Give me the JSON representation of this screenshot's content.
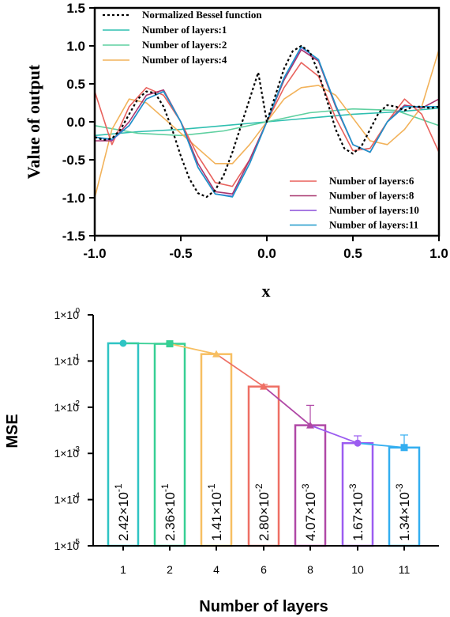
{
  "chart_data": [
    {
      "type": "line",
      "xlabel": "x",
      "ylabel": "Value of output",
      "xlim": [
        -1.0,
        1.0
      ],
      "ylim": [
        -1.5,
        1.5
      ],
      "x_ticks": [
        "-1.0",
        "-0.5",
        "0.0",
        "0.5",
        "1.0"
      ],
      "y_ticks": [
        "-1.5",
        "-1.0",
        "-0.5",
        "0.0",
        "0.5",
        "1.0",
        "1.5"
      ],
      "legend_top_left": [
        "Normalized Bessel function",
        "Number of layers:1",
        "Number of layers:2",
        "Number of layers:4"
      ],
      "legend_bottom_right": [
        "Number of layers:6",
        "Number of layers:8",
        "Number of layers:10",
        "Number of layers:11"
      ],
      "series": [
        {
          "name": "Normalized Bessel function",
          "color": "#000000",
          "dash": true,
          "x": [
            -1,
            -0.95,
            -0.9,
            -0.85,
            -0.8,
            -0.75,
            -0.7,
            -0.65,
            -0.6,
            -0.55,
            -0.5,
            -0.45,
            -0.4,
            -0.35,
            -0.3,
            -0.25,
            -0.2,
            -0.15,
            -0.1,
            -0.05,
            0,
            0.05,
            0.1,
            0.15,
            0.2,
            0.25,
            0.3,
            0.35,
            0.4,
            0.45,
            0.5,
            0.55,
            0.6,
            0.65,
            0.7,
            0.75,
            0.8,
            0.85,
            0.9,
            0.95,
            1
          ],
          "y": [
            -0.2,
            -0.24,
            -0.22,
            -0.1,
            0.1,
            0.3,
            0.4,
            0.38,
            0.2,
            -0.1,
            -0.45,
            -0.75,
            -0.94,
            -0.99,
            -0.9,
            -0.7,
            -0.4,
            -0.05,
            0.3,
            0.65,
            0.0,
            0.35,
            0.7,
            0.93,
            1.0,
            0.92,
            0.65,
            0.28,
            -0.1,
            -0.35,
            -0.42,
            -0.32,
            -0.1,
            0.12,
            0.22,
            0.2,
            0.15,
            0.2,
            0.2,
            0.18,
            0.2
          ]
        },
        {
          "name": "Number of layers:1",
          "color": "#2fbfb0",
          "x": [
            -1,
            -0.75,
            -0.5,
            -0.25,
            0,
            0.25,
            0.5,
            0.75,
            1
          ],
          "y": [
            -0.18,
            -0.13,
            -0.1,
            -0.05,
            0.0,
            0.05,
            0.1,
            0.13,
            0.18
          ]
        },
        {
          "name": "Number of layers:2",
          "color": "#5fd0a0",
          "x": [
            -1,
            -0.75,
            -0.5,
            -0.25,
            0,
            0.25,
            0.5,
            0.75,
            1
          ],
          "y": [
            -0.05,
            -0.15,
            -0.18,
            -0.12,
            0.0,
            0.12,
            0.17,
            0.15,
            -0.05
          ]
        },
        {
          "name": "Number of layers:4",
          "color": "#f2b25a",
          "x": [
            -1,
            -0.9,
            -0.8,
            -0.7,
            -0.6,
            -0.5,
            -0.4,
            -0.3,
            -0.2,
            -0.1,
            0,
            0.1,
            0.2,
            0.3,
            0.4,
            0.5,
            0.6,
            0.7,
            0.8,
            0.9,
            1
          ],
          "y": [
            -1.0,
            -0.1,
            0.3,
            0.25,
            0.05,
            -0.15,
            -0.35,
            -0.55,
            -0.55,
            -0.3,
            0.0,
            0.3,
            0.45,
            0.48,
            0.35,
            0.05,
            -0.25,
            -0.3,
            -0.1,
            0.2,
            0.95
          ]
        },
        {
          "name": "Number of layers:6",
          "color": "#e8615c",
          "x": [
            -1,
            -0.9,
            -0.8,
            -0.7,
            -0.6,
            -0.5,
            -0.4,
            -0.3,
            -0.2,
            -0.1,
            0,
            0.1,
            0.2,
            0.3,
            0.4,
            0.5,
            0.6,
            0.7,
            0.8,
            0.9,
            1
          ],
          "y": [
            0.4,
            -0.3,
            0.2,
            0.45,
            0.35,
            0.0,
            -0.45,
            -0.8,
            -0.85,
            -0.5,
            0.0,
            0.45,
            0.78,
            0.6,
            0.05,
            -0.38,
            -0.35,
            0.0,
            0.3,
            0.1,
            -0.4
          ]
        },
        {
          "name": "Number of layers:8",
          "color": "#a8356e",
          "x": [
            -1,
            -0.9,
            -0.8,
            -0.7,
            -0.6,
            -0.5,
            -0.4,
            -0.3,
            -0.2,
            -0.1,
            0,
            0.1,
            0.2,
            0.3,
            0.4,
            0.5,
            0.6,
            0.7,
            0.8,
            0.9,
            1
          ],
          "y": [
            -0.25,
            -0.25,
            0.0,
            0.35,
            0.42,
            0.0,
            -0.55,
            -0.92,
            -0.95,
            -0.5,
            0.0,
            0.55,
            0.95,
            0.8,
            0.2,
            -0.3,
            -0.4,
            0.0,
            0.22,
            0.18,
            0.3
          ]
        },
        {
          "name": "Number of layers:10",
          "color": "#8a4fd8",
          "x": [
            -1,
            -0.9,
            -0.8,
            -0.7,
            -0.6,
            -0.5,
            -0.4,
            -0.3,
            -0.2,
            -0.1,
            0,
            0.1,
            0.2,
            0.3,
            0.4,
            0.5,
            0.6,
            0.7,
            0.8,
            0.9,
            1
          ],
          "y": [
            -0.2,
            -0.24,
            -0.05,
            0.3,
            0.4,
            0.0,
            -0.6,
            -0.95,
            -0.98,
            -0.55,
            0.0,
            0.58,
            0.98,
            0.82,
            0.22,
            -0.3,
            -0.4,
            0.0,
            0.2,
            0.2,
            0.2
          ]
        },
        {
          "name": "Number of layers:11",
          "color": "#1b98c9",
          "x": [
            -1,
            -0.9,
            -0.8,
            -0.7,
            -0.6,
            -0.5,
            -0.4,
            -0.3,
            -0.2,
            -0.1,
            0,
            0.1,
            0.2,
            0.3,
            0.4,
            0.5,
            0.6,
            0.7,
            0.8,
            0.9,
            1
          ],
          "y": [
            -0.2,
            -0.23,
            -0.05,
            0.3,
            0.4,
            0.0,
            -0.6,
            -0.95,
            -0.99,
            -0.55,
            0.0,
            0.58,
            0.99,
            0.82,
            0.22,
            -0.3,
            -0.4,
            0.0,
            0.2,
            0.2,
            0.2
          ]
        }
      ]
    },
    {
      "type": "bar",
      "xlabel": "Number of layers",
      "ylabel": "MSE",
      "yscale": "log",
      "ylim": [
        1e-05,
        1
      ],
      "y_ticks": [
        {
          "base": "1×10",
          "exp": "0"
        },
        {
          "base": "1×10",
          "exp": "-1"
        },
        {
          "base": "1×10",
          "exp": "-2"
        },
        {
          "base": "1×10",
          "exp": "-3"
        },
        {
          "base": "1×10",
          "exp": "-4"
        },
        {
          "base": "1×10",
          "exp": "-5"
        }
      ],
      "categories": [
        "1",
        "2",
        "4",
        "6",
        "8",
        "10",
        "11"
      ],
      "values": [
        0.242,
        0.236,
        0.141,
        0.028,
        0.00407,
        0.00167,
        0.00134
      ],
      "error_upper": [
        0.245,
        0.245,
        0.141,
        0.031,
        0.011,
        0.0024,
        0.0025
      ],
      "bar_labels": [
        {
          "mant": "2.42×10",
          "exp": "-1"
        },
        {
          "mant": "2.36×10",
          "exp": "-1"
        },
        {
          "mant": "1.41×10",
          "exp": "-1"
        },
        {
          "mant": "2.80×10",
          "exp": "-2"
        },
        {
          "mant": "4.07×10",
          "exp": "-3"
        },
        {
          "mant": "1.67×10",
          "exp": "-3"
        },
        {
          "mant": "1.34×10",
          "exp": "-3"
        }
      ],
      "colors": [
        "#2ec4c4",
        "#36cf94",
        "#f7bf62",
        "#ee6f64",
        "#b048a6",
        "#9b5cf0",
        "#33aef0"
      ]
    }
  ]
}
